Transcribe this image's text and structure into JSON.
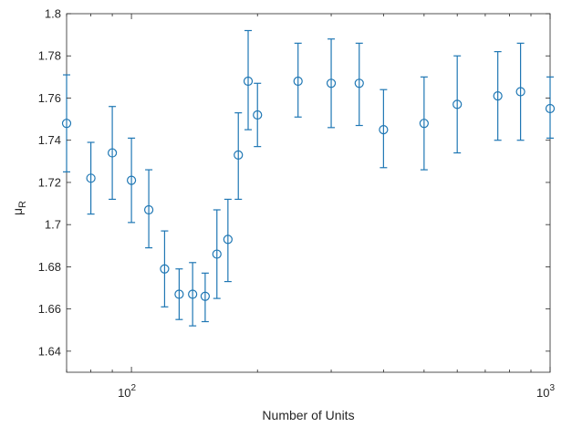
{
  "chart_data": {
    "type": "scatter",
    "title": "",
    "xlabel": "Number of Units",
    "ylabel": {
      "base": "μ",
      "sub": "R"
    },
    "xscale": "log",
    "xlim": [
      70,
      1000
    ],
    "ylim": [
      1.63,
      1.8
    ],
    "grid": false,
    "box": true,
    "color": "#1f77b4",
    "marker": "circle",
    "y_ticks": [
      1.64,
      1.66,
      1.68,
      1.7,
      1.72,
      1.74,
      1.76,
      1.78,
      1.8
    ],
    "y_tick_labels": [
      "1.64",
      "1.66",
      "1.68",
      "1.7",
      "1.72",
      "1.74",
      "1.76",
      "1.78",
      "1.8"
    ],
    "x_major_ticks": [
      {
        "value": 100,
        "base": "10",
        "exp": "2"
      },
      {
        "value": 1000,
        "base": "10",
        "exp": "3"
      }
    ],
    "x_minor_ticks": [
      70,
      80,
      90,
      200,
      300,
      400,
      500,
      600,
      700,
      800,
      900
    ],
    "points": [
      {
        "x": 70,
        "y": 1.748,
        "lo": 1.725,
        "hi": 1.771
      },
      {
        "x": 80,
        "y": 1.722,
        "lo": 1.705,
        "hi": 1.739
      },
      {
        "x": 90,
        "y": 1.734,
        "lo": 1.712,
        "hi": 1.756
      },
      {
        "x": 100,
        "y": 1.721,
        "lo": 1.701,
        "hi": 1.741
      },
      {
        "x": 110,
        "y": 1.707,
        "lo": 1.689,
        "hi": 1.726
      },
      {
        "x": 120,
        "y": 1.679,
        "lo": 1.661,
        "hi": 1.697
      },
      {
        "x": 130,
        "y": 1.667,
        "lo": 1.655,
        "hi": 1.679
      },
      {
        "x": 140,
        "y": 1.667,
        "lo": 1.652,
        "hi": 1.682
      },
      {
        "x": 150,
        "y": 1.666,
        "lo": 1.654,
        "hi": 1.677
      },
      {
        "x": 160,
        "y": 1.686,
        "lo": 1.665,
        "hi": 1.707
      },
      {
        "x": 170,
        "y": 1.693,
        "lo": 1.673,
        "hi": 1.712
      },
      {
        "x": 180,
        "y": 1.733,
        "lo": 1.712,
        "hi": 1.753
      },
      {
        "x": 190,
        "y": 1.768,
        "lo": 1.745,
        "hi": 1.792
      },
      {
        "x": 200,
        "y": 1.752,
        "lo": 1.737,
        "hi": 1.767
      },
      {
        "x": 250,
        "y": 1.768,
        "lo": 1.751,
        "hi": 1.786
      },
      {
        "x": 300,
        "y": 1.767,
        "lo": 1.746,
        "hi": 1.788
      },
      {
        "x": 350,
        "y": 1.767,
        "lo": 1.747,
        "hi": 1.786
      },
      {
        "x": 400,
        "y": 1.745,
        "lo": 1.727,
        "hi": 1.764
      },
      {
        "x": 500,
        "y": 1.748,
        "lo": 1.726,
        "hi": 1.77
      },
      {
        "x": 600,
        "y": 1.757,
        "lo": 1.734,
        "hi": 1.78
      },
      {
        "x": 750,
        "y": 1.761,
        "lo": 1.74,
        "hi": 1.782
      },
      {
        "x": 850,
        "y": 1.763,
        "lo": 1.74,
        "hi": 1.786
      },
      {
        "x": 1000,
        "y": 1.755,
        "lo": 1.741,
        "hi": 1.77
      }
    ]
  }
}
